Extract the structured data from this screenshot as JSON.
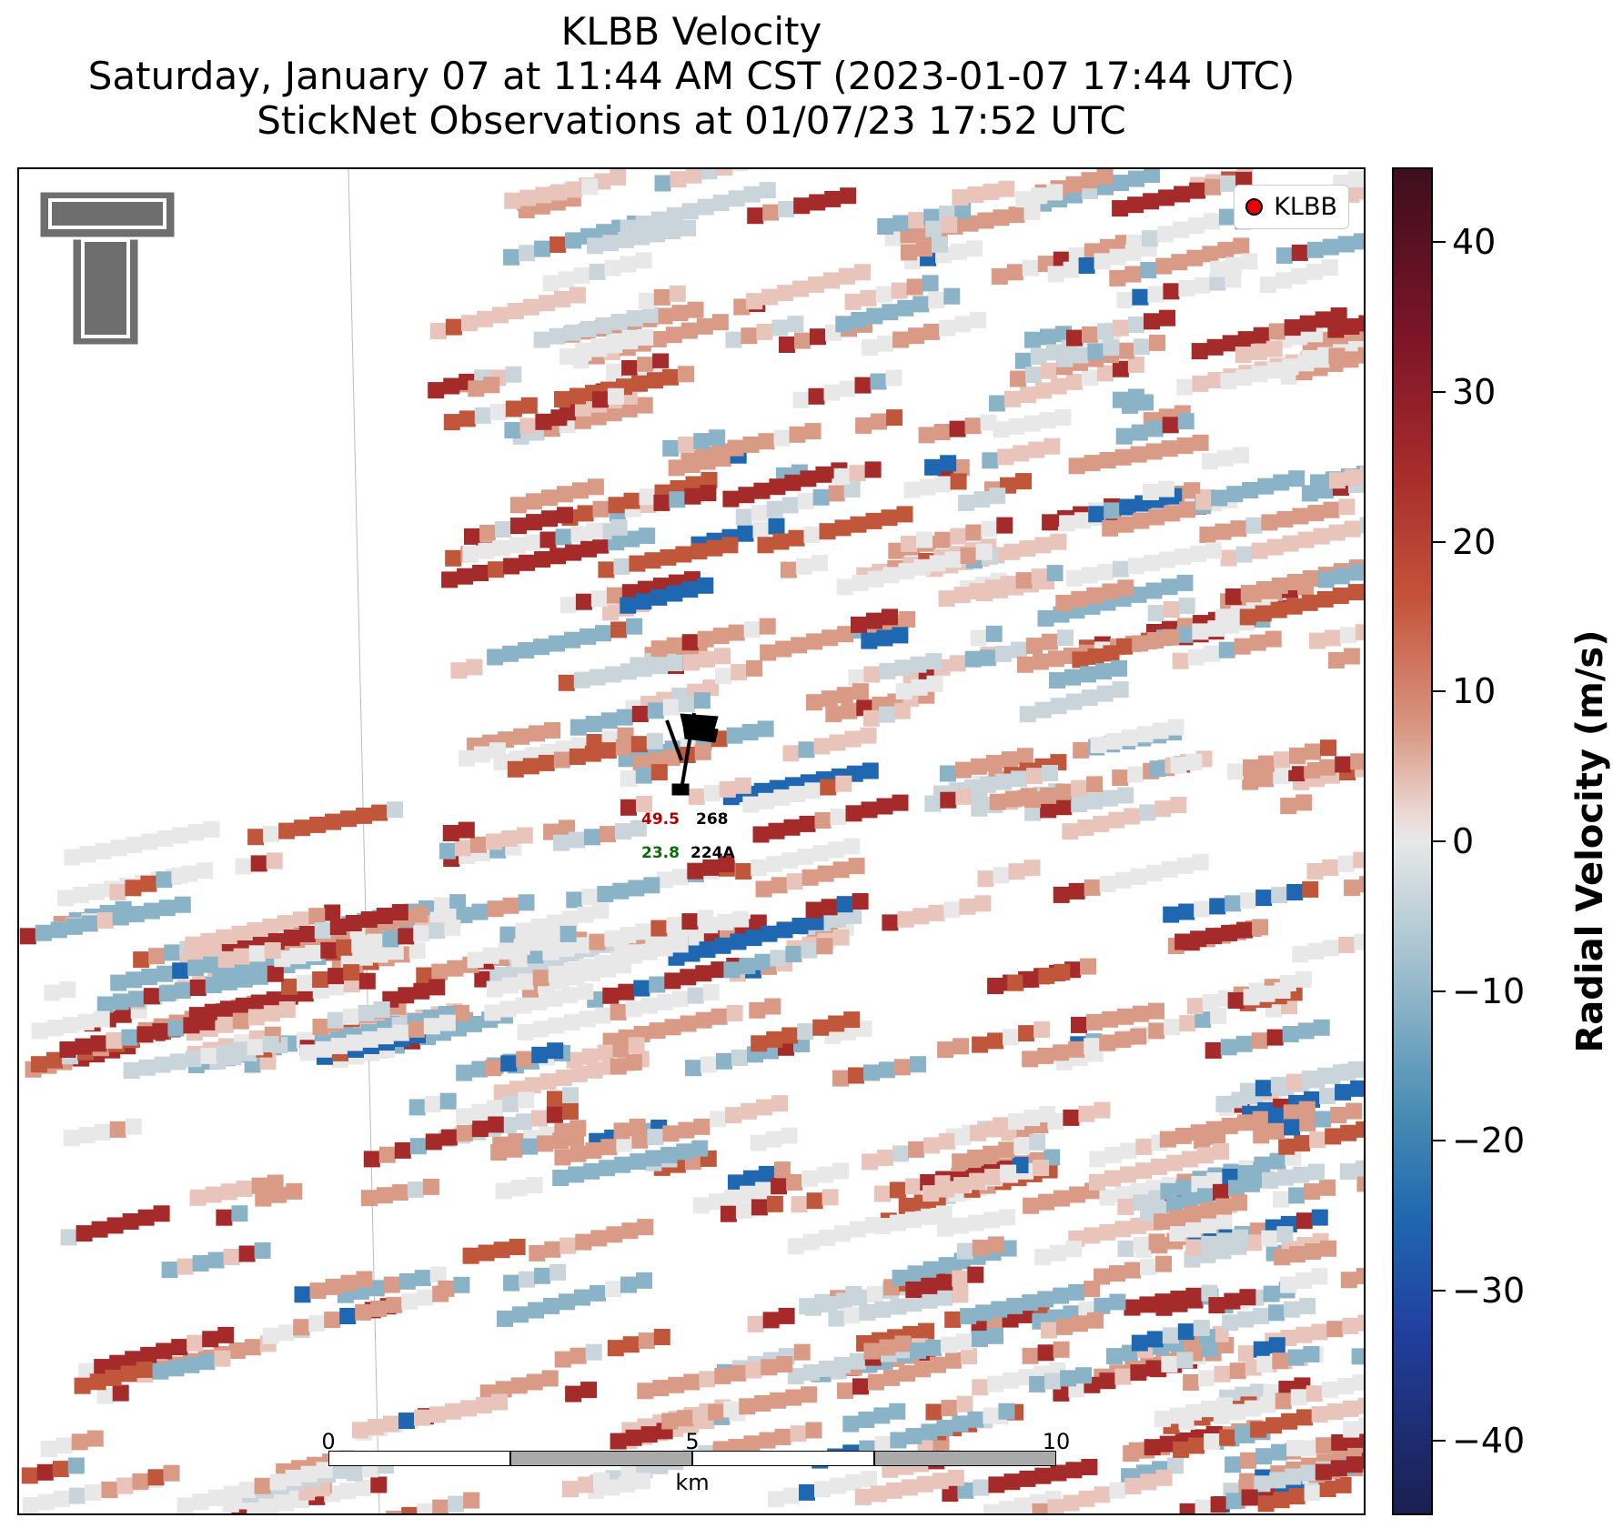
{
  "title": {
    "line1": "KLBB Velocity",
    "line2": "Saturday, January 07 at 11:44 AM CST (2023-01-07 17:44 UTC)",
    "line3": "StickNet Observations at 01/07/23 17:52 UTC"
  },
  "legend": {
    "label": "KLBB",
    "marker_color": "#e8000b"
  },
  "logo": {
    "name": "texas-tech-double-t"
  },
  "scale_bar": {
    "ticks": [
      "0",
      "5",
      "10"
    ],
    "unit": "km"
  },
  "stations": [
    {
      "id": "268",
      "value": "49.5",
      "value_color": "#b00000"
    },
    {
      "id": "224A",
      "value": "23.8",
      "value_color": "#0a6b0a"
    }
  ],
  "colorbar": {
    "label": "Radial Velocity (m/s)",
    "min": -45,
    "max": 45,
    "ticks": [
      "40",
      "30",
      "20",
      "10",
      "0",
      "−10",
      "−20",
      "−30",
      "−40"
    ]
  },
  "colors": {
    "strong_outbound": "#a52a2a",
    "weak_outbound": "#d99a86",
    "neutral": "#e8e8e8",
    "weak_inbound": "#8bb3c7",
    "strong_inbound": "#1f67b0"
  }
}
